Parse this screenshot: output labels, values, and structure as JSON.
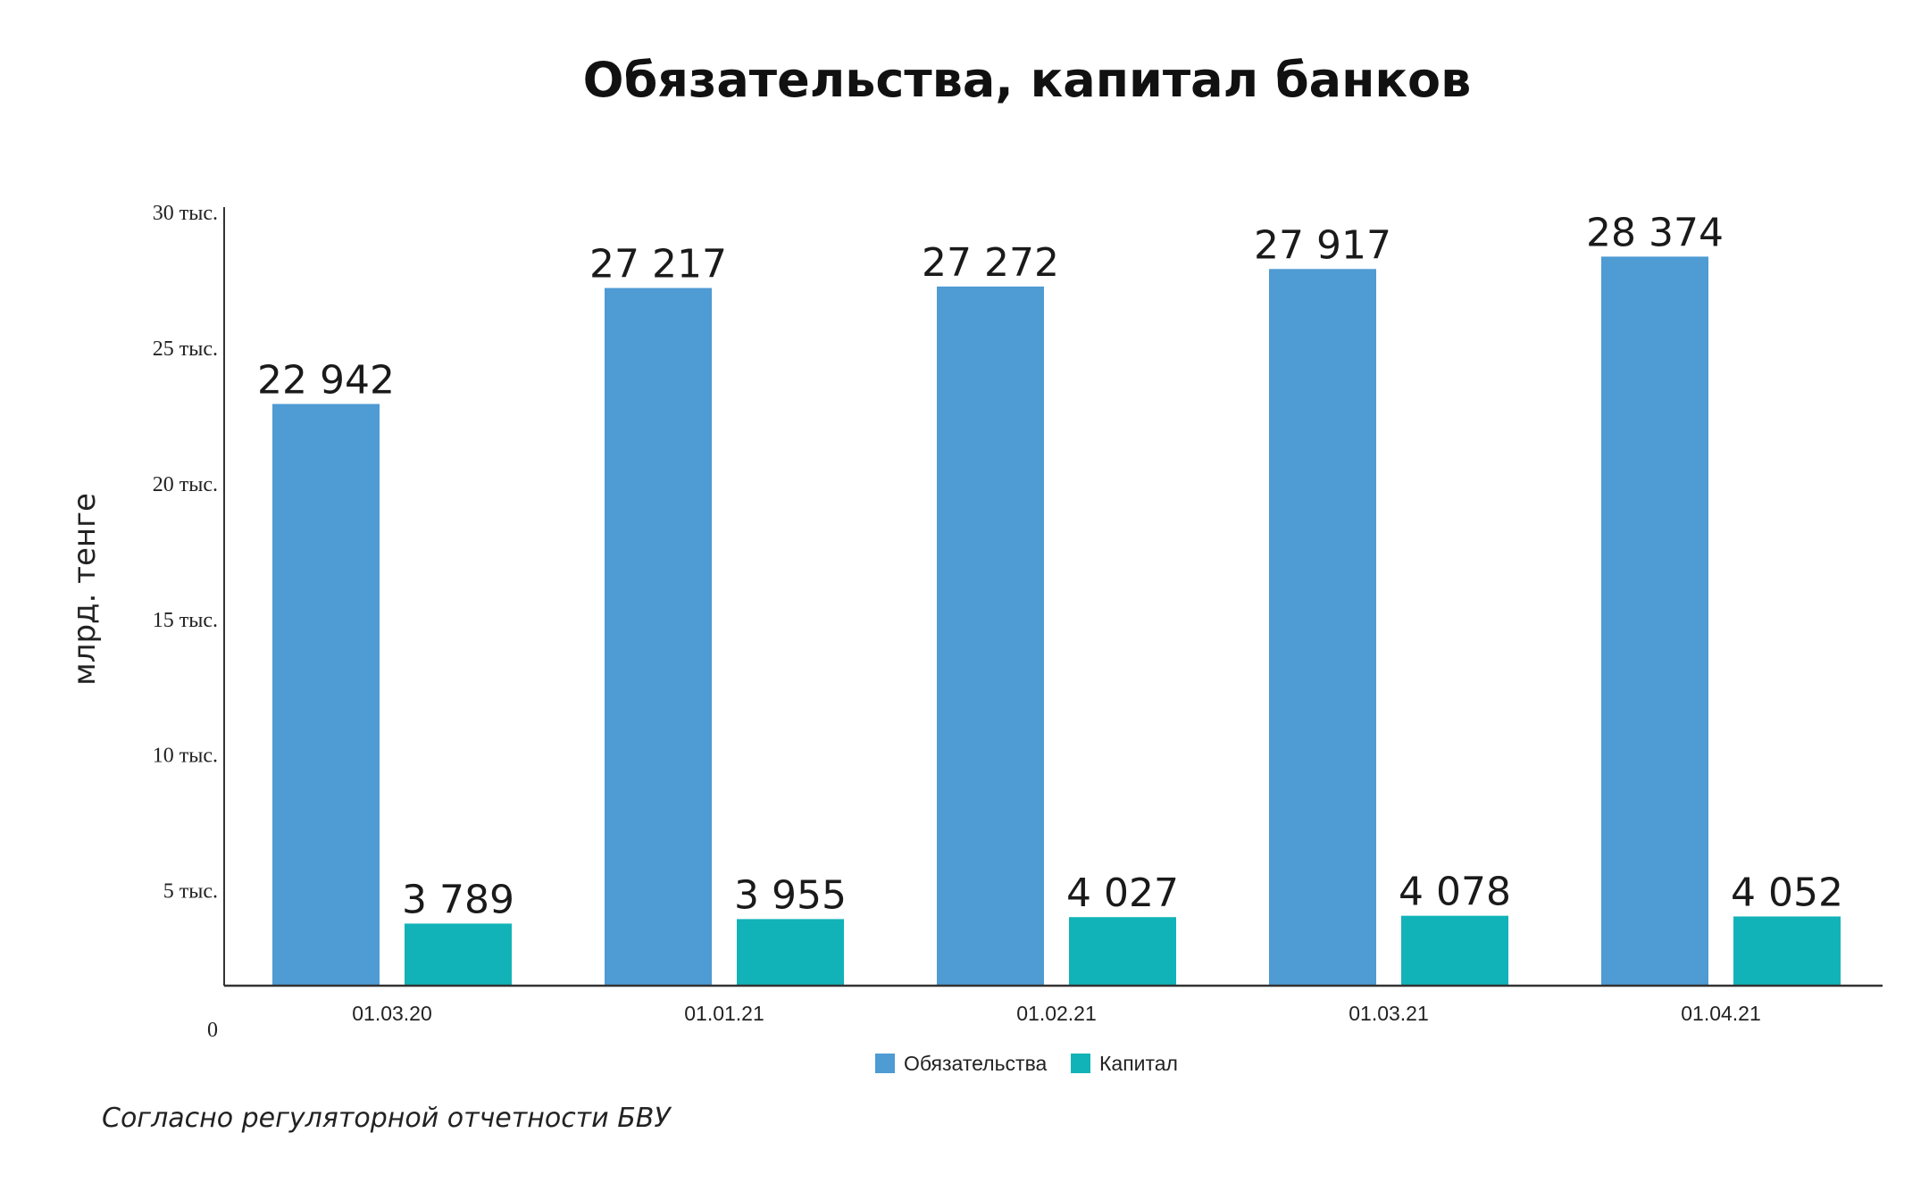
{
  "chart_data": {
    "type": "bar",
    "title": "Обязательства, капитал банков",
    "ylabel": "млрд. тенге",
    "xlabel": "",
    "categories": [
      "01.03.20",
      "01.01.21",
      "01.02.21",
      "01.03.21",
      "01.04.21"
    ],
    "series": [
      {
        "name": "Обязательства",
        "color": "#4f9bd3",
        "values": [
          22942,
          27217,
          27272,
          27917,
          28374
        ],
        "labels": [
          "22 942",
          "27 217",
          "27 272",
          "27 917",
          "28 374"
        ]
      },
      {
        "name": "Капитал",
        "color": "#12b3b8",
        "values": [
          3789,
          3955,
          4027,
          4078,
          4052
        ],
        "labels": [
          "3 789",
          "3 955",
          "4 027",
          "4 078",
          "4 052"
        ]
      }
    ],
    "y_ticks": [
      {
        "value": 5000,
        "label": "5 тыс."
      },
      {
        "value": 10000,
        "label": "10 тыс."
      },
      {
        "value": 15000,
        "label": "15 тыс."
      },
      {
        "value": 20000,
        "label": "20 тыс."
      },
      {
        "value": 25000,
        "label": "25 тыс."
      },
      {
        "value": 30000,
        "label": "30 тыс."
      }
    ],
    "zero_label": "0",
    "ylim": [
      1500,
      30000
    ],
    "grid": false,
    "legend_position": "bottom"
  },
  "source_note": "Согласно регуляторной отчетности БВУ"
}
